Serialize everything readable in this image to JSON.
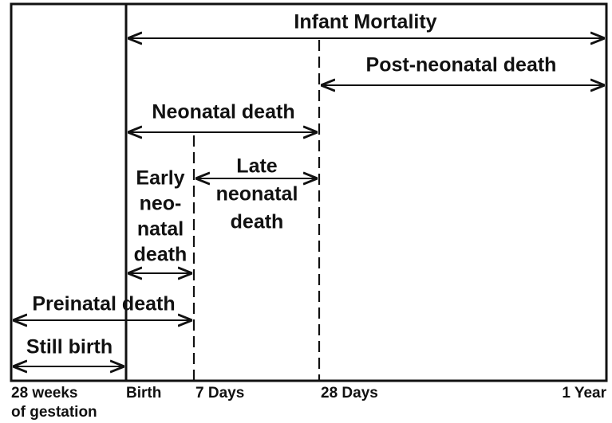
{
  "diagram": {
    "infant_mortality": "Infant Mortality",
    "post_neonatal": "Post-neonatal death",
    "neonatal": "Neonatal death",
    "late_neonatal": [
      "Late",
      "neonatal",
      "death"
    ],
    "early_neonatal": [
      "Early",
      "neo-",
      "natal",
      "death"
    ],
    "perinatal": "Preinatal death",
    "still_birth": "Still birth",
    "timeline": [
      "28 weeks",
      "of gestation",
      "Birth",
      "7 Days",
      "28 Days",
      "1 Year"
    ]
  }
}
